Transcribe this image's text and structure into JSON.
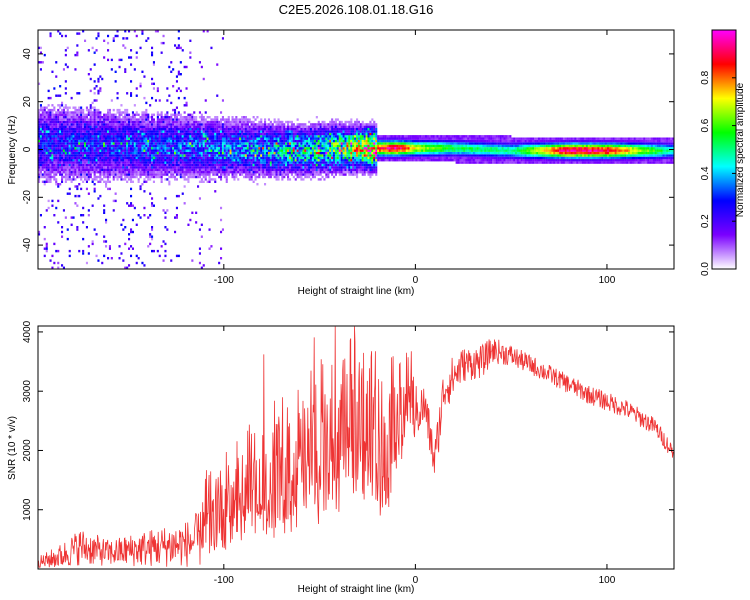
{
  "figure_title": "C2E5.2026.108.01.18.G16",
  "chart_data": [
    {
      "type": "heatmap",
      "title": "C2E5.2026.108.01.18.G16",
      "xlabel": "Height of straight line (km)",
      "ylabel": "Frequency (Hz)",
      "xlim": [
        -197,
        135
      ],
      "ylim": [
        -50,
        50
      ],
      "x_ticks": [
        -100,
        0,
        100
      ],
      "y_ticks": [
        -40,
        -20,
        0,
        20,
        40
      ],
      "colorbar": {
        "label": "Normalized spectral amplitude",
        "range": [
          0,
          1
        ],
        "ticks": [
          "0.0",
          "0.2",
          "0.4",
          "0.6",
          "0.8"
        ],
        "tick_values": [
          0.0,
          0.2,
          0.4,
          0.6,
          0.8
        ],
        "colors": [
          "#ffffff",
          "#7a00ff",
          "#0000ff",
          "#00ffff",
          "#00ff00",
          "#ffff00",
          "#ff0000",
          "#ff00ff"
        ]
      },
      "ridge": {
        "x": [
          -197,
          -150,
          -100,
          -60,
          -40,
          -30,
          -20,
          -10,
          0,
          20,
          50,
          80,
          100,
          135
        ],
        "center_hz": [
          2,
          1,
          0,
          -1,
          0,
          0,
          0,
          0,
          0,
          0,
          -1,
          -1,
          -1,
          -1
        ],
        "amplitude": [
          0.25,
          0.28,
          0.33,
          0.42,
          0.55,
          0.65,
          0.85,
          0.95,
          0.7,
          0.55,
          0.5,
          0.97,
          0.9,
          0.45
        ]
      }
    },
    {
      "type": "line",
      "xlabel": "Height of straight line (km)",
      "ylabel": "SNR (10 * v/v)",
      "xlim": [
        -197,
        135
      ],
      "ylim": [
        0,
        4100
      ],
      "x_ticks": [
        -100,
        0,
        100
      ],
      "y_ticks": [
        1000,
        2000,
        3000,
        4000
      ],
      "color": "#ee3333",
      "series": [
        {
          "name": "SNR",
          "x": [
            -197,
            -185,
            -175,
            -160,
            -140,
            -120,
            -100,
            -90,
            -80,
            -70,
            -60,
            -50,
            -40,
            -30,
            -20,
            -15,
            -10,
            -5,
            0,
            5,
            10,
            15,
            25,
            35,
            40,
            50,
            60,
            75,
            90,
            110,
            125,
            135
          ],
          "mean": [
            100,
            220,
            380,
            270,
            350,
            420,
            650,
            820,
            950,
            1100,
            1250,
            1350,
            1550,
            1800,
            1550,
            1400,
            2050,
            2350,
            2650,
            2750,
            1800,
            3050,
            3450,
            3500,
            3700,
            3600,
            3450,
            3200,
            2950,
            2700,
            2400,
            1950
          ],
          "spread": [
            150,
            300,
            450,
            320,
            450,
            560,
            900,
            1100,
            1250,
            1350,
            1400,
            1450,
            1500,
            1500,
            1400,
            1300,
            1100,
            950,
            650,
            550,
            500,
            600,
            420,
            400,
            320,
            260,
            240,
            230,
            230,
            230,
            220,
            200
          ]
        }
      ]
    }
  ]
}
